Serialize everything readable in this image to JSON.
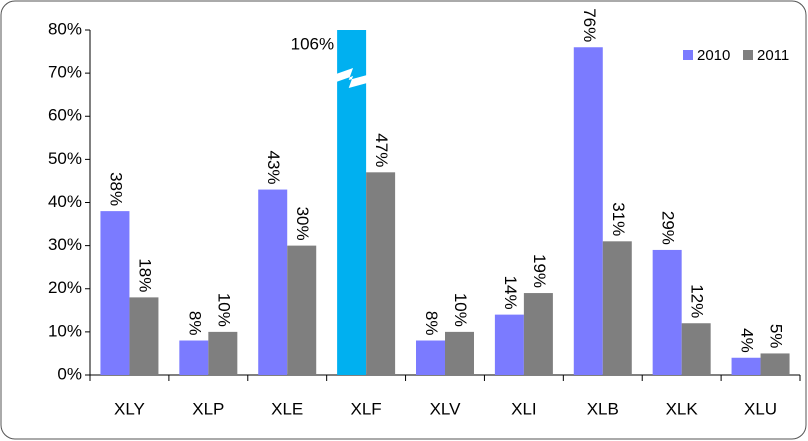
{
  "chart_data": {
    "type": "bar",
    "categories": [
      "XLY",
      "XLP",
      "XLE",
      "XLF",
      "XLV",
      "XLI",
      "XLB",
      "XLK",
      "XLU"
    ],
    "series": [
      {
        "name": "2010",
        "color": "#7b7bff",
        "colors": [
          "#7b7bff",
          "#7b7bff",
          "#7b7bff",
          "#00b0f0",
          "#7b7bff",
          "#7b7bff",
          "#7b7bff",
          "#7b7bff",
          "#7b7bff"
        ],
        "values": [
          38,
          8,
          43,
          106,
          8,
          14,
          76,
          29,
          4
        ],
        "value_labels": [
          "38%",
          "8%",
          "43%",
          "106%",
          "8%",
          "14%",
          "76%",
          "29%",
          "4%"
        ]
      },
      {
        "name": "2011",
        "color": "#7f7f7f",
        "values": [
          18,
          10,
          30,
          47,
          10,
          19,
          31,
          12,
          5
        ],
        "value_labels": [
          "18%",
          "10%",
          "30%",
          "47%",
          "10%",
          "19%",
          "31%",
          "12%",
          "5%"
        ]
      }
    ],
    "ylim": [
      0,
      80
    ],
    "yticks": [
      {
        "value": 0,
        "label": "0%"
      },
      {
        "value": 10,
        "label": "10%"
      },
      {
        "value": 20,
        "label": "20%"
      },
      {
        "value": 30,
        "label": "30%"
      },
      {
        "value": 40,
        "label": "40%"
      },
      {
        "value": 50,
        "label": "50%"
      },
      {
        "value": 60,
        "label": "60%"
      },
      {
        "value": 70,
        "label": "70%"
      },
      {
        "value": 80,
        "label": "80%"
      }
    ],
    "legend": "top-right",
    "grid": false
  }
}
